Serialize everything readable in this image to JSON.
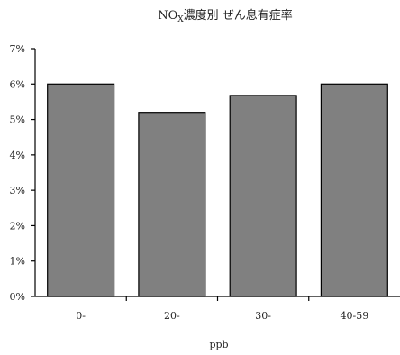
{
  "chart_data": {
    "type": "bar",
    "title_main": "NO",
    "title_sub": "X",
    "title_rest": "濃度別 ぜん息有症率",
    "categories": [
      "0-",
      "20-",
      "30-",
      "40-59"
    ],
    "values": [
      6.0,
      5.2,
      5.68,
      6.0
    ],
    "xlabel": "ppb",
    "ylabel": "",
    "ylim": [
      0,
      7
    ],
    "yticks": [
      "0%",
      "1%",
      "2%",
      "3%",
      "4%",
      "5%",
      "6%",
      "7%"
    ],
    "grid": false,
    "bar_color": "#808080"
  }
}
